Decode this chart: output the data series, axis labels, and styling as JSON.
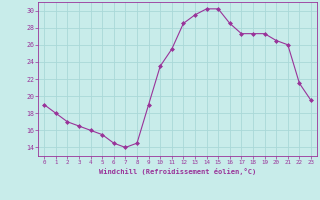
{
  "x_vals": [
    0,
    1,
    2,
    3,
    4,
    5,
    6,
    7,
    8,
    9,
    10,
    11,
    12,
    13,
    14,
    15,
    16,
    17,
    18,
    19,
    20,
    21,
    22,
    23
  ],
  "y_vals": [
    19,
    18,
    17,
    16.5,
    16,
    15.5,
    14.5,
    14,
    14.5,
    19,
    23.5,
    25.5,
    28.5,
    29.5,
    30.2,
    30.2,
    28.5,
    27.3,
    27.3,
    27.3,
    26.5,
    26,
    21.5,
    19.5
  ],
  "line_color": "#993399",
  "marker_color": "#993399",
  "bg_color": "#c8ecea",
  "grid_color": "#aad8d8",
  "text_color": "#993399",
  "xlabel": "Windchill (Refroidissement éolien,°C)",
  "ylim": [
    13.0,
    31.0
  ],
  "xlim": [
    -0.5,
    23.5
  ],
  "yticks": [
    14,
    16,
    18,
    20,
    22,
    24,
    26,
    28,
    30
  ],
  "xticks": [
    0,
    1,
    2,
    3,
    4,
    5,
    6,
    7,
    8,
    9,
    10,
    11,
    12,
    13,
    14,
    15,
    16,
    17,
    18,
    19,
    20,
    21,
    22,
    23
  ],
  "xtick_labels": [
    "0",
    "1",
    "2",
    "3",
    "4",
    "5",
    "6",
    "7",
    "8",
    "9",
    "10",
    "11",
    "12",
    "13",
    "14",
    "15",
    "16",
    "17",
    "18",
    "19",
    "20",
    "21",
    "22",
    "23"
  ]
}
